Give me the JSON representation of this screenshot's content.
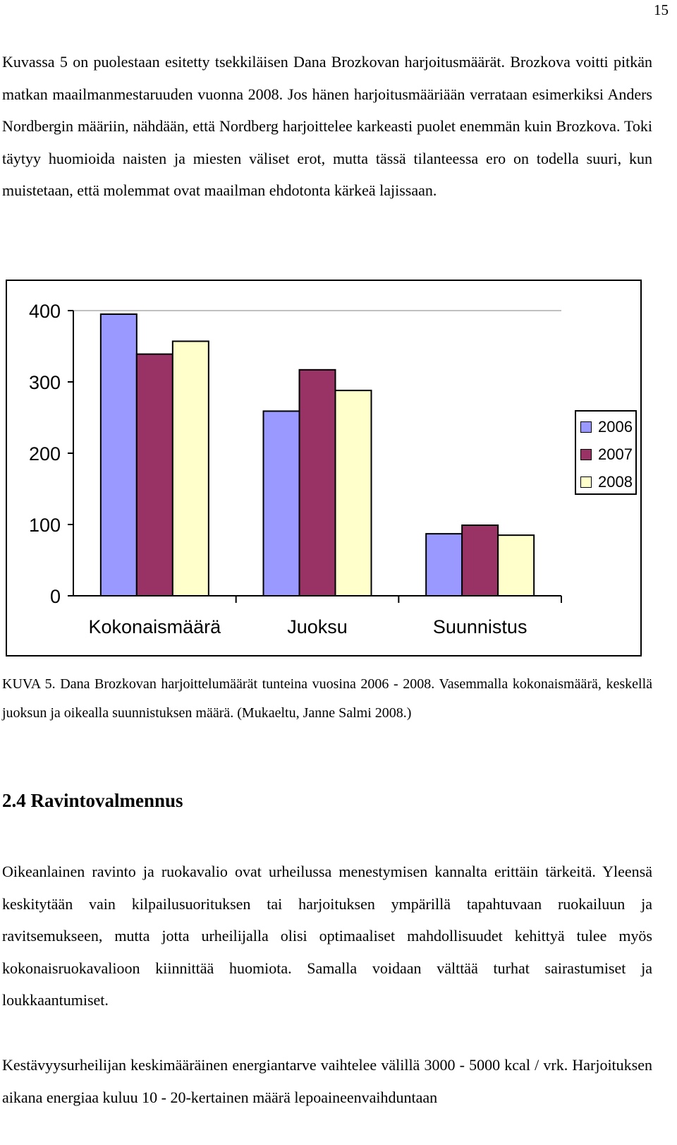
{
  "page_number": "15",
  "paragraphs": {
    "intro": "Kuvassa 5 on puolestaan esitetty tsekkiläisen Dana Brozkovan harjoitusmäärät. Brozkova voitti pitkän matkan maailmanmestaruuden vuonna 2008. Jos hänen harjoitusmääriään verrataan esimerkiksi Anders Nordbergin määriin, nähdään, että Nordberg harjoittelee karkeasti puolet enemmän kuin Brozkova. Toki täytyy huomioida naisten ja miesten väliset erot, mutta tässä tilanteessa ero on todella suuri, kun muistetaan, että molemmat ovat maailman ehdotonta kärkeä lajissaan.",
    "caption": "KUVA 5. Dana Brozkovan harjoittelumäärät tunteina vuosina 2006 - 2008. Vasemmalla kokonaismäärä, keskellä juoksun ja oikealla suunnistuksen määrä. (Mukaeltu, Janne Salmi 2008.)",
    "heading": "2.4 Ravintovalmennus",
    "nutrition": "Oikeanlainen ravinto ja ruokavalio ovat urheilussa menestymisen kannalta erittäin tärkeitä. Yleensä keskitytään vain kilpailusuorituksen tai harjoituksen ympärillä tapahtuvaan ruokailuun ja ravitsemukseen, mutta jotta urheilijalla olisi optimaaliset mahdollisuudet kehittyä tulee myös kokonaisruokavalioon kiinnittää huomiota. Samalla voidaan välttää turhat sairastumiset ja loukkaantumiset.",
    "energy": "Kestävyysurheilijan keskimääräinen energiantarve vaihtelee välillä 3000 - 5000 kcal / vrk. Harjoituksen aikana energiaa kuluu 10 - 20-kertainen määrä lepoaineenvaihduntaan"
  },
  "chart_data": {
    "type": "bar",
    "categories": [
      "Kokonaismäärä",
      "Juoksu",
      "Suunnistus"
    ],
    "series": [
      {
        "name": "2006",
        "values": [
          395,
          259,
          87
        ],
        "color": "#9999ff"
      },
      {
        "name": "2007",
        "values": [
          339,
          317,
          99
        ],
        "color": "#993366"
      },
      {
        "name": "2008",
        "values": [
          357,
          288,
          85
        ],
        "color": "#ffffcc"
      }
    ],
    "ylim": [
      0,
      400
    ],
    "yticks": [
      "0",
      "100",
      "200",
      "300",
      "400"
    ],
    "legend": "right",
    "grid": false
  }
}
